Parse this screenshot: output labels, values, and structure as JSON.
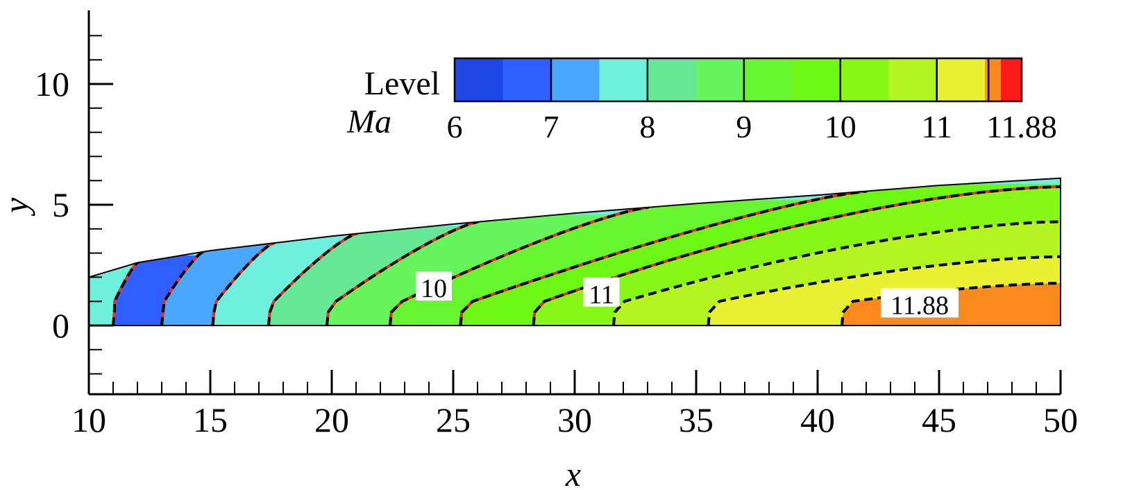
{
  "chart_data": {
    "type": "contour",
    "x_axis": {
      "label": "x",
      "range": [
        10,
        50
      ],
      "ticks": [
        "10",
        "15",
        "20",
        "25",
        "30",
        "35",
        "40",
        "45",
        "50"
      ]
    },
    "y_axis": {
      "label": "y",
      "range": [
        -3,
        13
      ],
      "ticks": [
        "0",
        "5",
        "10"
      ]
    },
    "legend": {
      "title": "Level",
      "variable": "Ma",
      "placement": "top-right",
      "tick_labels": [
        "6",
        "7",
        "8",
        "9",
        "10",
        "11",
        "11.88"
      ],
      "tick_values": [
        6,
        7,
        8,
        9,
        10,
        11,
        11.88
      ],
      "boundaries": [
        6,
        6.5,
        7,
        7.5,
        8,
        8.5,
        9,
        9.5,
        10,
        10.5,
        11,
        11.5,
        11.88
      ],
      "colors": [
        "#1f47e6",
        "#2f5fff",
        "#49a7ff",
        "#6ff0dd",
        "#66e896",
        "#66f55c",
        "#66f52e",
        "#6cf714",
        "#86f716",
        "#b4f521",
        "#eaf032",
        "#fa8a1e",
        "#fa3a1e",
        "#ff1a1a"
      ]
    },
    "domain": {
      "x_range": [
        10,
        50
      ],
      "lower_wall_y": 0,
      "upper_wall": [
        [
          10,
          2.0
        ],
        [
          12,
          2.6
        ],
        [
          15,
          3.1
        ],
        [
          20,
          3.7
        ],
        [
          25,
          4.2
        ],
        [
          30,
          4.65
        ],
        [
          35,
          5.05
        ],
        [
          40,
          5.4
        ],
        [
          45,
          5.8
        ],
        [
          50,
          6.1
        ]
      ]
    },
    "contour_lines": [
      {
        "level": 6.5,
        "x_at_axis": 11.0,
        "x_at_wall": 12.0
      },
      {
        "level": 7.0,
        "x_at_axis": 13.0,
        "x_at_wall": 14.7
      },
      {
        "level": 7.5,
        "x_at_axis": 15.1,
        "x_at_wall": 17.6
      },
      {
        "level": 8.0,
        "x_at_axis": 17.4,
        "x_at_wall": 21.0
      },
      {
        "level": 8.5,
        "x_at_axis": 19.8,
        "x_at_wall": 26.0
      },
      {
        "level": 9.0,
        "x_at_axis": 22.4,
        "x_at_wall": 33.0
      },
      {
        "level": 9.5,
        "x_at_axis": 25.3,
        "x_at_wall": 42.0
      },
      {
        "level": 10.0,
        "x_at_axis": 28.3,
        "y_at_exit": 5.75
      },
      {
        "level": 10.5,
        "x_at_axis": 31.6,
        "y_at_exit": 4.3
      },
      {
        "level": 11.0,
        "x_at_axis": 35.5,
        "y_at_exit": 2.85
      },
      {
        "level": 11.5,
        "x_at_axis": 41.0,
        "y_at_exit": 1.75
      }
    ],
    "contour_labels": [
      {
        "text": "10",
        "x": 24.2,
        "y": 1.55
      },
      {
        "text": "11",
        "x": 31.1,
        "y": 1.3
      },
      {
        "text": "11.88",
        "x": 44.2,
        "y": 0.85
      }
    ]
  }
}
